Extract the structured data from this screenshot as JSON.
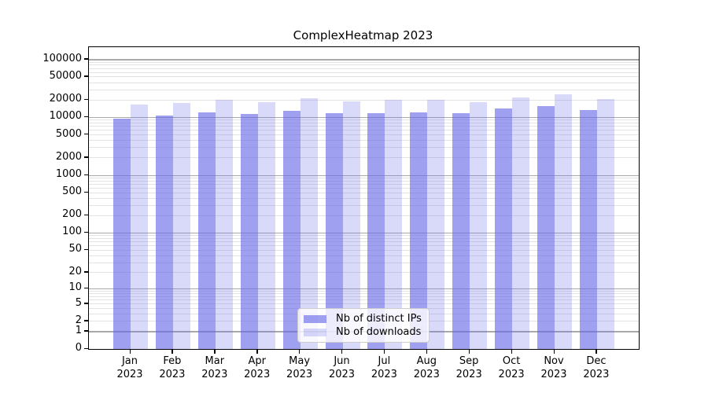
{
  "title": "ComplexHeatmap 2023",
  "chart_data": {
    "type": "bar",
    "title": "ComplexHeatmap 2023",
    "categories": [
      "Jan 2023",
      "Feb 2023",
      "Mar 2023",
      "Apr 2023",
      "May 2023",
      "Jun 2023",
      "Jul 2023",
      "Aug 2023",
      "Sep 2023",
      "Oct 2023",
      "Nov 2023",
      "Dec 2023"
    ],
    "series": [
      {
        "name": "Nb of distinct IPs",
        "color": "rgba(102,102,230,0.62)",
        "values": [
          9600,
          10900,
          12300,
          11400,
          13100,
          11900,
          12000,
          12300,
          11800,
          14300,
          15700,
          13600
        ]
      },
      {
        "name": "Nb of downloads",
        "color": "rgba(102,102,230,0.25)",
        "values": [
          16500,
          17700,
          20400,
          18600,
          21700,
          19200,
          20200,
          20000,
          18200,
          22000,
          25000,
          21100
        ]
      }
    ],
    "xlabel": "",
    "ylabel": "",
    "yscale": "log10(value+1)",
    "ylim": [
      0,
      166000
    ],
    "y_tick_values": [
      0,
      1,
      2,
      5,
      10,
      20,
      50,
      100,
      200,
      500,
      1000,
      2000,
      5000,
      10000,
      20000,
      50000,
      100000
    ],
    "grid": "major and minor horizontal gridlines",
    "legend_position": "bottom-center inside plot"
  },
  "legend": {
    "items": [
      {
        "label": "Nb of distinct IPs"
      },
      {
        "label": "Nb of downloads"
      }
    ]
  },
  "colors": {
    "bar_distinct_ips": "rgba(102,102,230,0.62)",
    "bar_downloads": "rgba(102,102,230,0.25)",
    "grid_major": "#a9a9a9",
    "grid_minor": "#e3e3e3",
    "axis": "#000000",
    "legend_border": "#cccccc"
  }
}
